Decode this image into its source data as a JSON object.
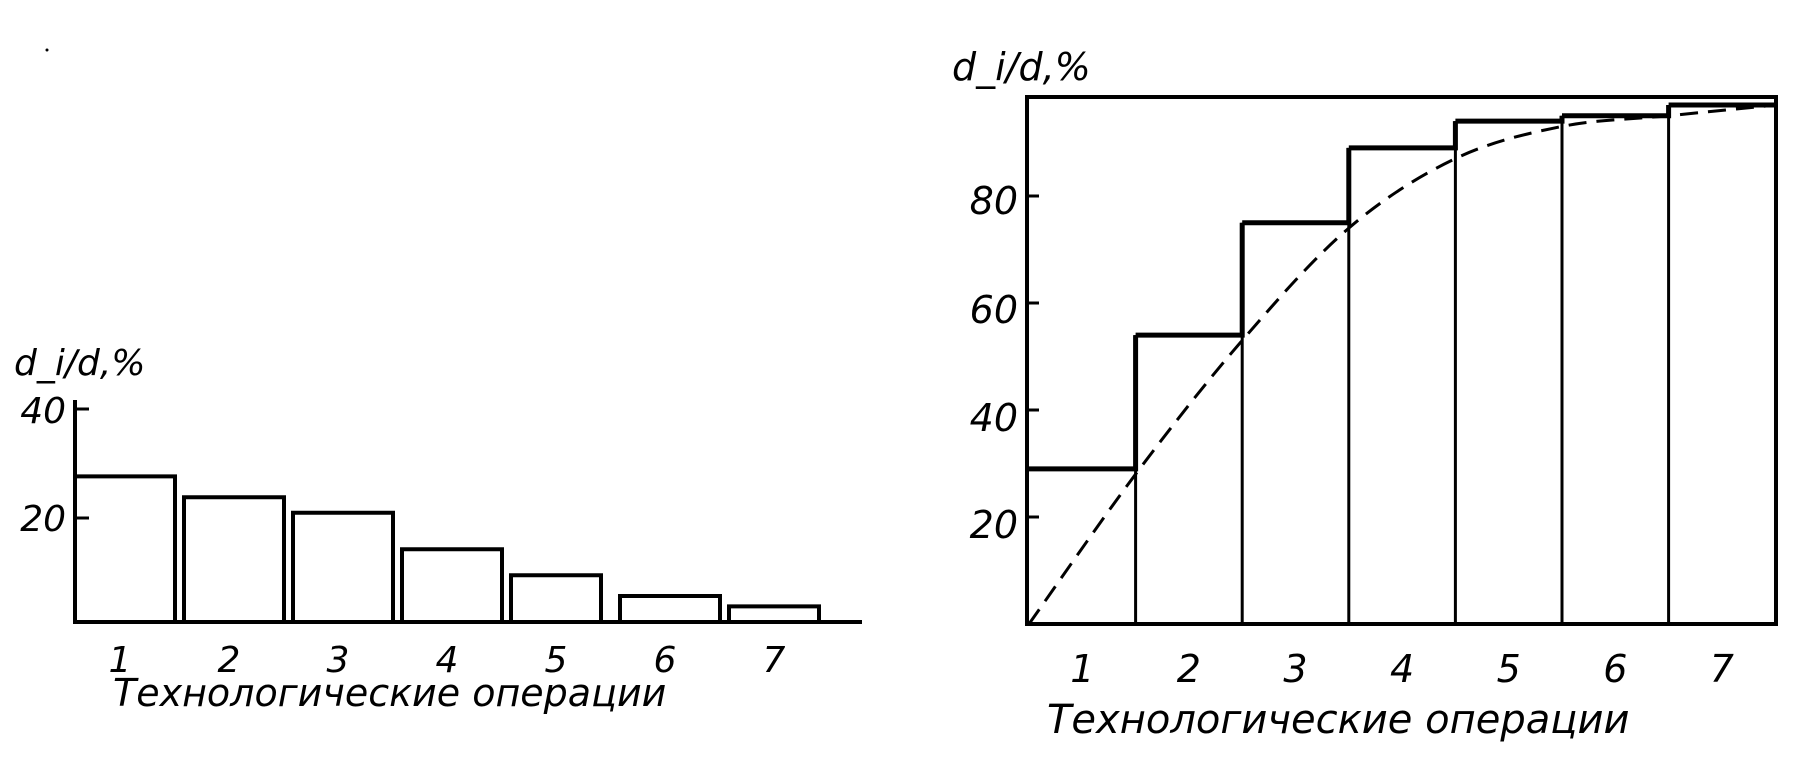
{
  "chart_data": [
    {
      "type": "bar",
      "ylabel": "d_i/d,%",
      "xlabel": "Технологические операции",
      "categories": [
        "1",
        "2",
        "3",
        "4",
        "5",
        "6",
        "7"
      ],
      "values": [
        28,
        24,
        21,
        14,
        9,
        5,
        3
      ],
      "yticks": [
        "20",
        "40"
      ],
      "ylim": [
        0,
        42
      ],
      "grid": false
    },
    {
      "type": "bar",
      "ylabel": "d_i/d,%",
      "xlabel": "Технологические операции",
      "categories": [
        "1",
        "2",
        "3",
        "4",
        "5",
        "6",
        "7"
      ],
      "values": [
        29,
        54,
        75,
        89,
        94,
        95,
        97
      ],
      "cumulative_curve": {
        "x": [
          0,
          1,
          2,
          3,
          4,
          5,
          6,
          7
        ],
        "y": [
          0,
          28,
          53,
          74,
          87,
          93,
          95,
          97
        ]
      },
      "yticks": [
        "20",
        "40",
        "60",
        "80"
      ],
      "ylim": [
        0,
        100
      ],
      "grid": false
    }
  ]
}
